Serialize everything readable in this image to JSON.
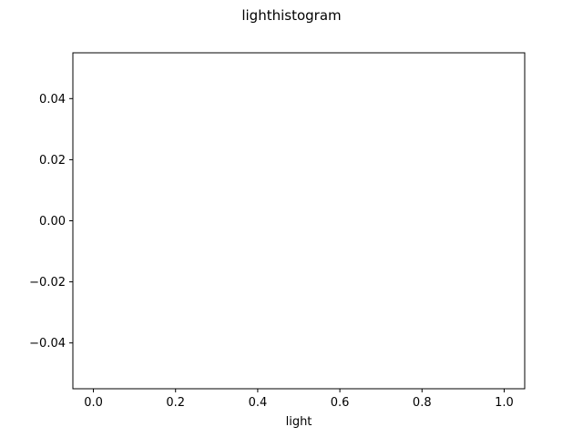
{
  "chart_data": {
    "type": "bar",
    "title": "lighthistogram",
    "xlabel": "light",
    "ylabel": "",
    "xlim": [
      -0.05,
      1.05
    ],
    "ylim": [
      -0.055,
      0.055
    ],
    "x_ticks": [
      0.0,
      0.2,
      0.4,
      0.6,
      0.8,
      1.0
    ],
    "x_tick_labels": [
      "0.0",
      "0.2",
      "0.4",
      "0.6",
      "0.8",
      "1.0"
    ],
    "y_ticks": [
      0.04,
      0.02,
      0.0,
      -0.02,
      -0.04
    ],
    "y_tick_labels": [
      "0.04",
      "0.02",
      "0.00",
      "−0.02",
      "−0.04"
    ],
    "grid": false,
    "series": [],
    "values": []
  }
}
